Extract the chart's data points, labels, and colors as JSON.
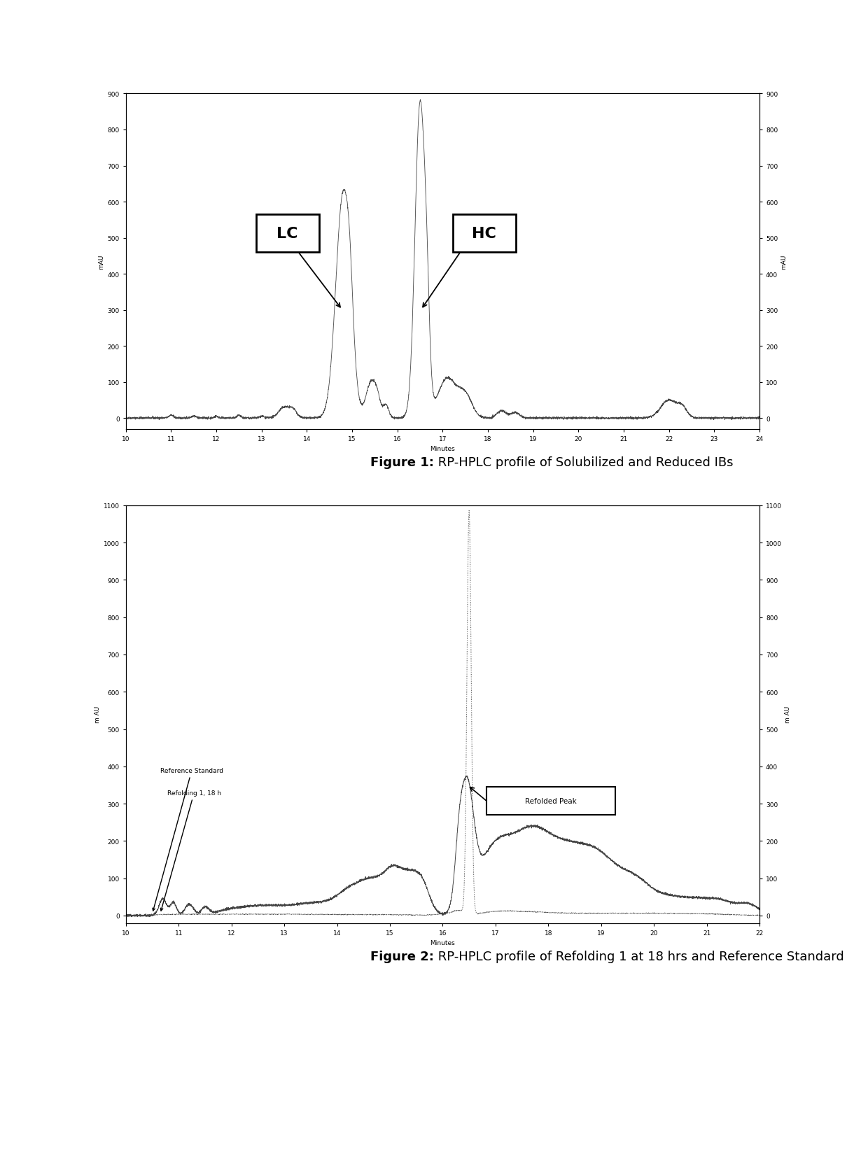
{
  "fig1": {
    "caption_bold": "Figure 1:",
    "caption_normal": " RP-HPLC profile of Solubilized and Reduced IBs",
    "xlabel": "Minutes",
    "ylabel_left": "mAU",
    "ylabel_right": "mAU",
    "xlim": [
      10,
      24
    ],
    "ylim": [
      -30,
      900
    ],
    "xticks": [
      10,
      11,
      12,
      13,
      14,
      15,
      16,
      17,
      18,
      19,
      20,
      21,
      22,
      23,
      24
    ],
    "yticks": [
      0,
      100,
      200,
      300,
      400,
      500,
      600,
      700,
      800,
      900
    ],
    "lc_label": "LC",
    "hc_label": "HC"
  },
  "fig2": {
    "caption_bold": "Figure 2:",
    "caption_normal": " RP-HPLC profile of Refolding 1 at 18 hrs and Reference Standard",
    "xlabel": "Minutes",
    "ylabel_left": "m AU",
    "ylabel_right": "m AU",
    "xlim": [
      10,
      22
    ],
    "ylim": [
      -20,
      1100
    ],
    "xticks": [
      10,
      11,
      12,
      13,
      14,
      15,
      16,
      17,
      18,
      19,
      20,
      21,
      22
    ],
    "yticks": [
      0,
      100,
      200,
      300,
      400,
      500,
      600,
      700,
      800,
      900,
      1000,
      1100
    ],
    "ref_label": "Reference Standard",
    "refolding_label": "Refolding 1, 18 h",
    "refolded_peak_label": "Refolded Peak"
  },
  "background_color": "#ffffff",
  "line_color": "#444444",
  "dotted_line_color": "#444444"
}
